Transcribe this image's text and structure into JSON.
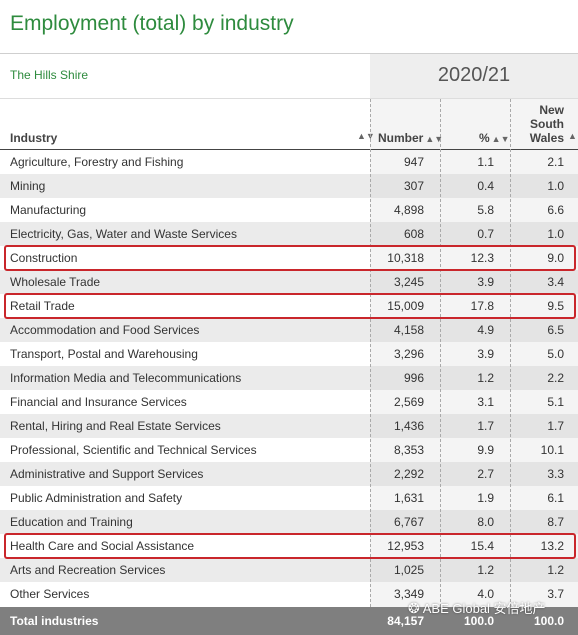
{
  "title": "Employment (total) by industry",
  "area": "The Hills Shire",
  "year": "2020/21",
  "headers": {
    "industry": "Industry",
    "number": "Number",
    "percent": "%",
    "nsw_line1": "New",
    "nsw_line2": "South",
    "nsw_line3": "Wales"
  },
  "rows": [
    {
      "industry": "Agriculture, Forestry and Fishing",
      "number": "947",
      "percent": "1.1",
      "nsw": "2.1"
    },
    {
      "industry": "Mining",
      "number": "307",
      "percent": "0.4",
      "nsw": "1.0"
    },
    {
      "industry": "Manufacturing",
      "number": "4,898",
      "percent": "5.8",
      "nsw": "6.6"
    },
    {
      "industry": "Electricity, Gas, Water and Waste Services",
      "number": "608",
      "percent": "0.7",
      "nsw": "1.0"
    },
    {
      "industry": "Construction",
      "number": "10,318",
      "percent": "12.3",
      "nsw": "9.0"
    },
    {
      "industry": "Wholesale Trade",
      "number": "3,245",
      "percent": "3.9",
      "nsw": "3.4"
    },
    {
      "industry": "Retail Trade",
      "number": "15,009",
      "percent": "17.8",
      "nsw": "9.5"
    },
    {
      "industry": "Accommodation and Food Services",
      "number": "4,158",
      "percent": "4.9",
      "nsw": "6.5"
    },
    {
      "industry": "Transport, Postal and Warehousing",
      "number": "3,296",
      "percent": "3.9",
      "nsw": "5.0"
    },
    {
      "industry": "Information Media and Telecommunications",
      "number": "996",
      "percent": "1.2",
      "nsw": "2.2"
    },
    {
      "industry": "Financial and Insurance Services",
      "number": "2,569",
      "percent": "3.1",
      "nsw": "5.1"
    },
    {
      "industry": "Rental, Hiring and Real Estate Services",
      "number": "1,436",
      "percent": "1.7",
      "nsw": "1.7"
    },
    {
      "industry": "Professional, Scientific and Technical Services",
      "number": "8,353",
      "percent": "9.9",
      "nsw": "10.1"
    },
    {
      "industry": "Administrative and Support Services",
      "number": "2,292",
      "percent": "2.7",
      "nsw": "3.3"
    },
    {
      "industry": "Public Administration and Safety",
      "number": "1,631",
      "percent": "1.9",
      "nsw": "6.1"
    },
    {
      "industry": "Education and Training",
      "number": "6,767",
      "percent": "8.0",
      "nsw": "8.7"
    },
    {
      "industry": "Health Care and Social Assistance",
      "number": "12,953",
      "percent": "15.4",
      "nsw": "13.2"
    },
    {
      "industry": "Arts and Recreation Services",
      "number": "1,025",
      "percent": "1.2",
      "nsw": "1.2"
    },
    {
      "industry": "Other Services",
      "number": "3,349",
      "percent": "4.0",
      "nsw": "3.7"
    }
  ],
  "total": {
    "industry": "Total industries",
    "number": "84,157",
    "percent": "100.0",
    "nsw": "100.0"
  },
  "highlighted_rows": [
    "Construction",
    "Retail Trade",
    "Health Care and Social Assistance"
  ],
  "colors": {
    "title": "#2e8b3e",
    "highlight": "#c9262b",
    "total_bg": "#7f7f7f"
  },
  "watermark": "ABE Global 安倍地产",
  "watermark_icon": "wechat-icon"
}
